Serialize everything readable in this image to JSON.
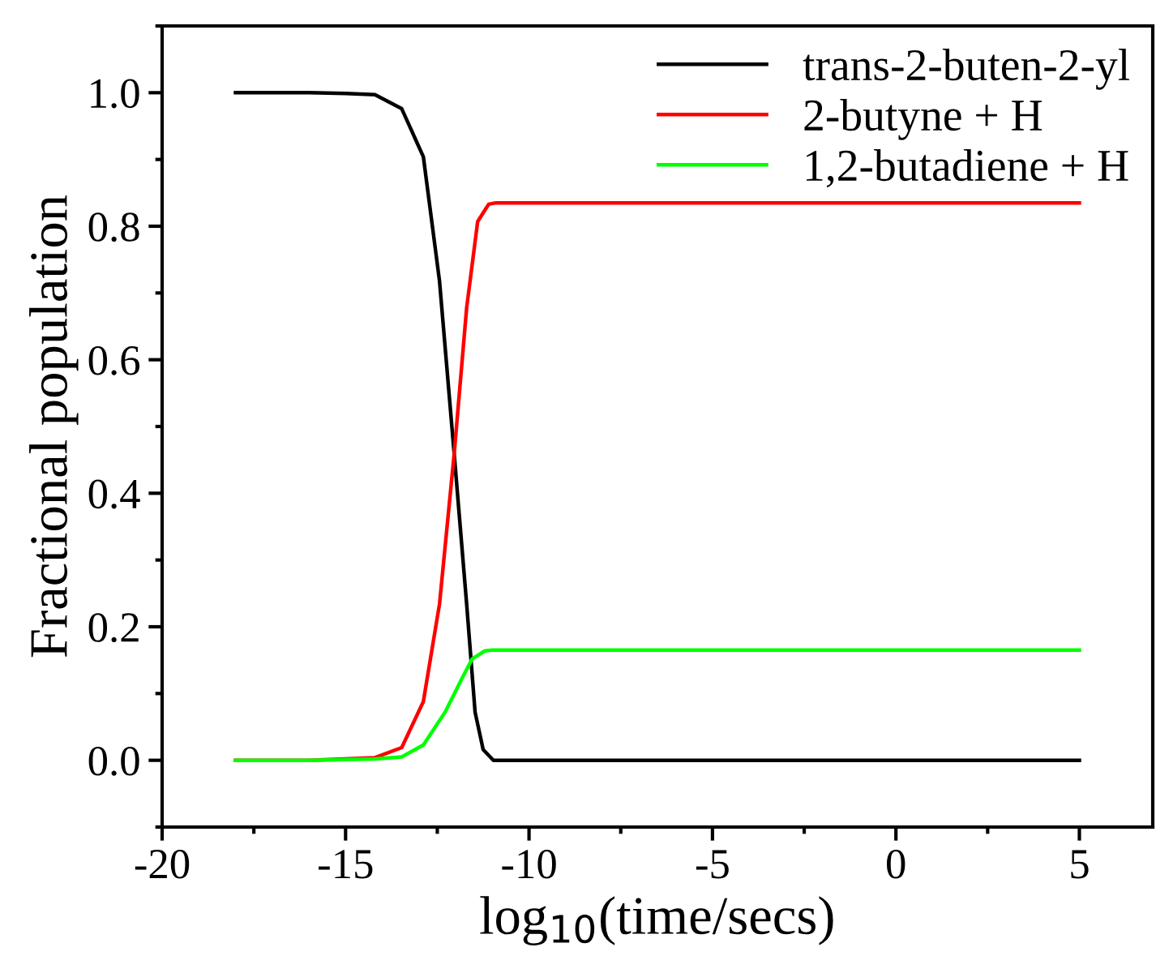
{
  "chart_data": {
    "type": "line",
    "xlabel": "log$_{10}$(time/secs)",
    "ylabel": "Fractional population",
    "xlim": [
      -20,
      7
    ],
    "ylim": [
      -0.1,
      1.1
    ],
    "xticks": [
      -20,
      -15,
      -10,
      -5,
      0,
      5
    ],
    "yticks": [
      {
        "value": 0,
        "label": "0.0"
      },
      {
        "value": 0.2,
        "label": "0.2"
      },
      {
        "value": 0.4,
        "label": "0.4"
      },
      {
        "value": 0.6,
        "label": "0.6"
      },
      {
        "value": 0.8,
        "label": "0.8"
      },
      {
        "value": 1.0,
        "label": "1.0"
      }
    ],
    "grid": false,
    "legend": "top right",
    "marker": "none",
    "line_style": "solid",
    "series": [
      {
        "name": "trans-2-buten-2-yl",
        "color": "#000000",
        "x": [
          -18,
          -16,
          -15,
          -14.2,
          -13.47,
          -12.88,
          -12.44,
          -12.04,
          -11.7,
          -11.47,
          -11.25,
          -10.97,
          -10,
          5
        ],
        "values": [
          1.0,
          1.0,
          0.999,
          0.997,
          0.976,
          0.904,
          0.718,
          0.459,
          0.234,
          0.072,
          0.016,
          0.0,
          0.0,
          0.0
        ]
      },
      {
        "name": "2-butyne + H",
        "color": "#ff0000",
        "x": [
          -18,
          -16,
          -14.2,
          -13.47,
          -12.88,
          -12.44,
          -12.04,
          -11.7,
          -11.4,
          -11.1,
          -10.9,
          -10,
          5
        ],
        "values": [
          0.0,
          0.0,
          0.004,
          0.019,
          0.088,
          0.234,
          0.459,
          0.678,
          0.807,
          0.833,
          0.835,
          0.835,
          0.835
        ]
      },
      {
        "name": "1,2-butadiene + H",
        "color": "#00ff00",
        "x": [
          -18,
          -16,
          -14.2,
          -13.47,
          -12.88,
          -12.29,
          -11.85,
          -11.55,
          -11.2,
          -11.0,
          -10,
          5
        ],
        "values": [
          0.0,
          0.0,
          0.002,
          0.005,
          0.023,
          0.072,
          0.12,
          0.152,
          0.164,
          0.165,
          0.165,
          0.165
        ]
      }
    ]
  }
}
